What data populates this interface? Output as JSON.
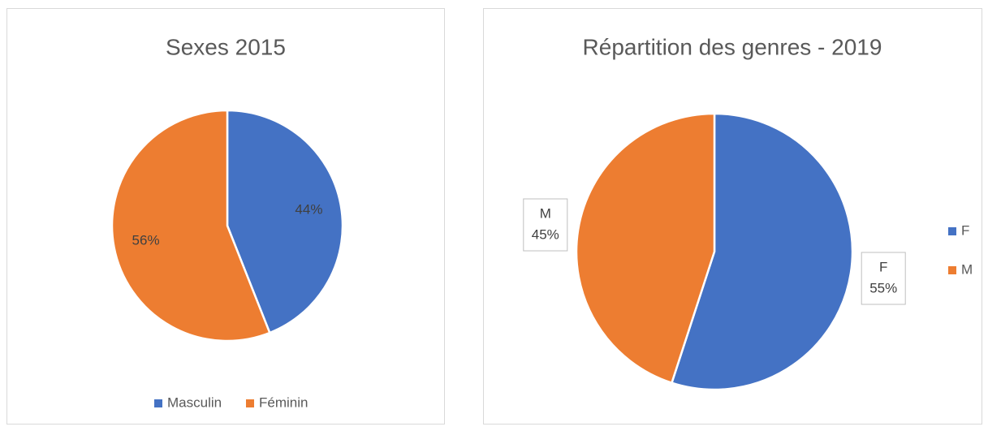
{
  "chart_data": [
    {
      "type": "pie",
      "title": "Sexes 2015",
      "categories": [
        "Masculin",
        "Féminin"
      ],
      "values": [
        44,
        56
      ],
      "value_labels": [
        "44%",
        "56%"
      ],
      "colors": [
        "#4472c4",
        "#ed7d31"
      ],
      "legend": "bottom",
      "data_labels": "inside"
    },
    {
      "type": "pie",
      "title": "Répartition des genres - 2019",
      "categories": [
        "F",
        "M"
      ],
      "values": [
        55,
        45
      ],
      "value_labels": [
        "55%",
        "45%"
      ],
      "colors": [
        "#4472c4",
        "#ed7d31"
      ],
      "legend": "right",
      "data_labels": "callout"
    }
  ]
}
